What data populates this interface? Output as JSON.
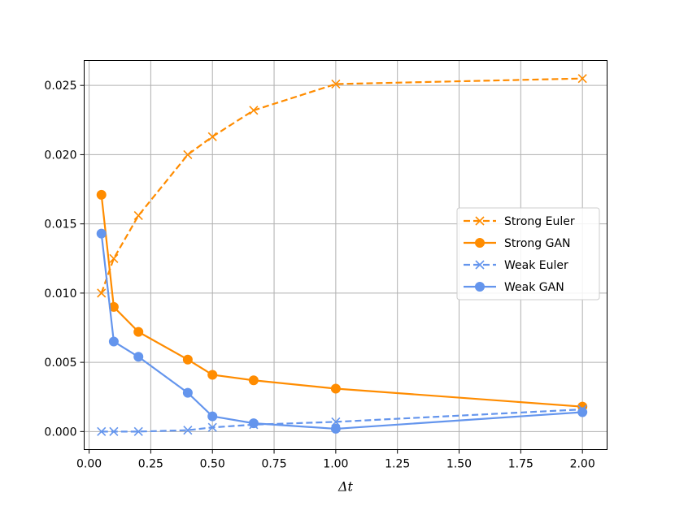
{
  "chart_data": {
    "type": "line",
    "title": "",
    "xlabel": "Δt",
    "ylabel": "",
    "xlim": [
      -0.02,
      2.1
    ],
    "ylim": [
      -0.0013,
      0.0268
    ],
    "grid": true,
    "legend_placement": "center-right",
    "xticks": [
      0.0,
      0.25,
      0.5,
      0.75,
      1.0,
      1.25,
      1.5,
      1.75,
      2.0
    ],
    "xtick_labels": [
      "0.00",
      "0.25",
      "0.50",
      "0.75",
      "1.00",
      "1.25",
      "1.50",
      "1.75",
      "2.00"
    ],
    "yticks": [
      0.0,
      0.005,
      0.01,
      0.015,
      0.02,
      0.025
    ],
    "ytick_labels": [
      "0.000",
      "0.005",
      "0.010",
      "0.015",
      "0.020",
      "0.025"
    ],
    "series": [
      {
        "name": "Strong Euler",
        "color": "#ff8c00",
        "linestyle": "dashed",
        "marker": "x",
        "x": [
          0.05,
          0.1,
          0.2,
          0.4,
          0.5,
          0.667,
          1.0,
          2.0
        ],
        "y": [
          0.01,
          0.0125,
          0.0156,
          0.02,
          0.0213,
          0.0232,
          0.0251,
          0.0255
        ]
      },
      {
        "name": "Strong GAN",
        "color": "#ff8c00",
        "linestyle": "solid",
        "marker": "o",
        "x": [
          0.05,
          0.1,
          0.2,
          0.4,
          0.5,
          0.667,
          1.0,
          2.0
        ],
        "y": [
          0.0171,
          0.009,
          0.0072,
          0.0052,
          0.0041,
          0.0037,
          0.0031,
          0.0018
        ]
      },
      {
        "name": "Weak Euler",
        "color": "#6495ed",
        "linestyle": "dashed",
        "marker": "x",
        "x": [
          0.05,
          0.1,
          0.2,
          0.4,
          0.5,
          0.667,
          1.0,
          2.0
        ],
        "y": [
          0.0,
          0.0,
          0.0,
          0.0001,
          0.0003,
          0.0005,
          0.0007,
          0.0016
        ]
      },
      {
        "name": "Weak GAN",
        "color": "#6495ed",
        "linestyle": "solid",
        "marker": "o",
        "x": [
          0.05,
          0.1,
          0.2,
          0.4,
          0.5,
          0.667,
          1.0,
          2.0
        ],
        "y": [
          0.0143,
          0.0065,
          0.0054,
          0.0028,
          0.0011,
          0.0006,
          0.0002,
          0.0014
        ]
      }
    ]
  }
}
